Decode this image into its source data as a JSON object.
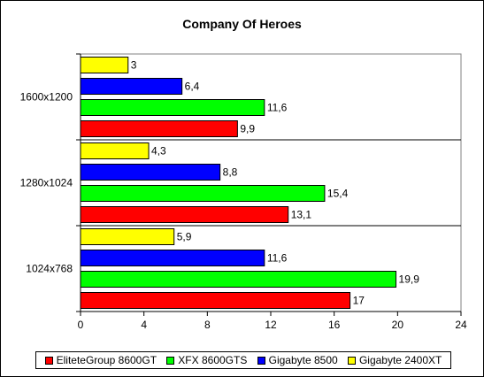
{
  "chart_data": {
    "type": "bar",
    "orientation": "horizontal",
    "title": "Company Of Heroes",
    "xlabel": "",
    "ylabel": "",
    "xlim": [
      0,
      24
    ],
    "xticks": [
      "0",
      "4",
      "8",
      "12",
      "16",
      "20",
      "24"
    ],
    "categories": [
      "1600x1200",
      "1280x1024",
      "1024x768"
    ],
    "series": [
      {
        "name": "Gigabyte 2400XT",
        "color": "#ffff00",
        "values": [
          3,
          4.3,
          5.9
        ],
        "labels": [
          "3",
          "4,3",
          "5,9"
        ]
      },
      {
        "name": "Gigabyte 8500",
        "color": "#0000ff",
        "values": [
          6.4,
          8.8,
          11.6
        ],
        "labels": [
          "6,4",
          "8,8",
          "11,6"
        ]
      },
      {
        "name": "XFX 8600GTS",
        "color": "#00ff00",
        "values": [
          11.6,
          15.4,
          19.9
        ],
        "labels": [
          "11,6",
          "15,4",
          "19,9"
        ]
      },
      {
        "name": "EliteteGroup 8600GT",
        "color": "#ff0000",
        "values": [
          9.9,
          13.1,
          17
        ],
        "labels": [
          "9,9",
          "13,1",
          "17"
        ]
      }
    ],
    "legend_order": [
      "EliteteGroup 8600GT",
      "XFX 8600GTS",
      "Gigabyte 8500",
      "Gigabyte 2400XT"
    ],
    "grid": true,
    "legend_position": "bottom"
  }
}
